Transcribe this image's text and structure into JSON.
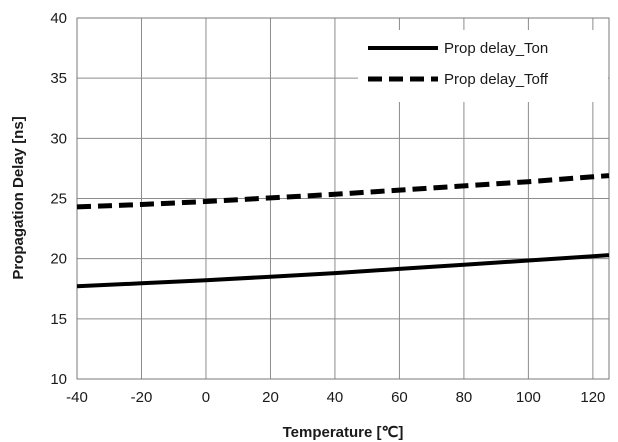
{
  "chart_data": {
    "type": "line",
    "title": "",
    "xlabel": "Temperature [℃]",
    "ylabel": "Propagation Delay [ns]",
    "xlim": [
      -40,
      125
    ],
    "ylim": [
      10,
      40
    ],
    "x_ticks": [
      -40,
      -20,
      0,
      20,
      40,
      60,
      80,
      100,
      120
    ],
    "y_ticks": [
      10,
      15,
      20,
      25,
      30,
      35,
      40
    ],
    "grid": true,
    "legend_position": "top-right",
    "series": [
      {
        "name": "Prop delay_Ton",
        "style": "solid",
        "color": "#000000",
        "x": [
          -40,
          -20,
          0,
          20,
          40,
          60,
          80,
          100,
          120,
          125
        ],
        "y": [
          17.7,
          17.95,
          18.2,
          18.5,
          18.8,
          19.15,
          19.5,
          19.85,
          20.2,
          20.3
        ]
      },
      {
        "name": "Prop delay_Toff",
        "style": "dashed",
        "color": "#000000",
        "x": [
          -40,
          -20,
          0,
          20,
          40,
          60,
          80,
          100,
          120,
          125
        ],
        "y": [
          24.3,
          24.5,
          24.75,
          25.05,
          25.35,
          25.7,
          26.05,
          26.4,
          26.8,
          26.9
        ]
      }
    ]
  }
}
